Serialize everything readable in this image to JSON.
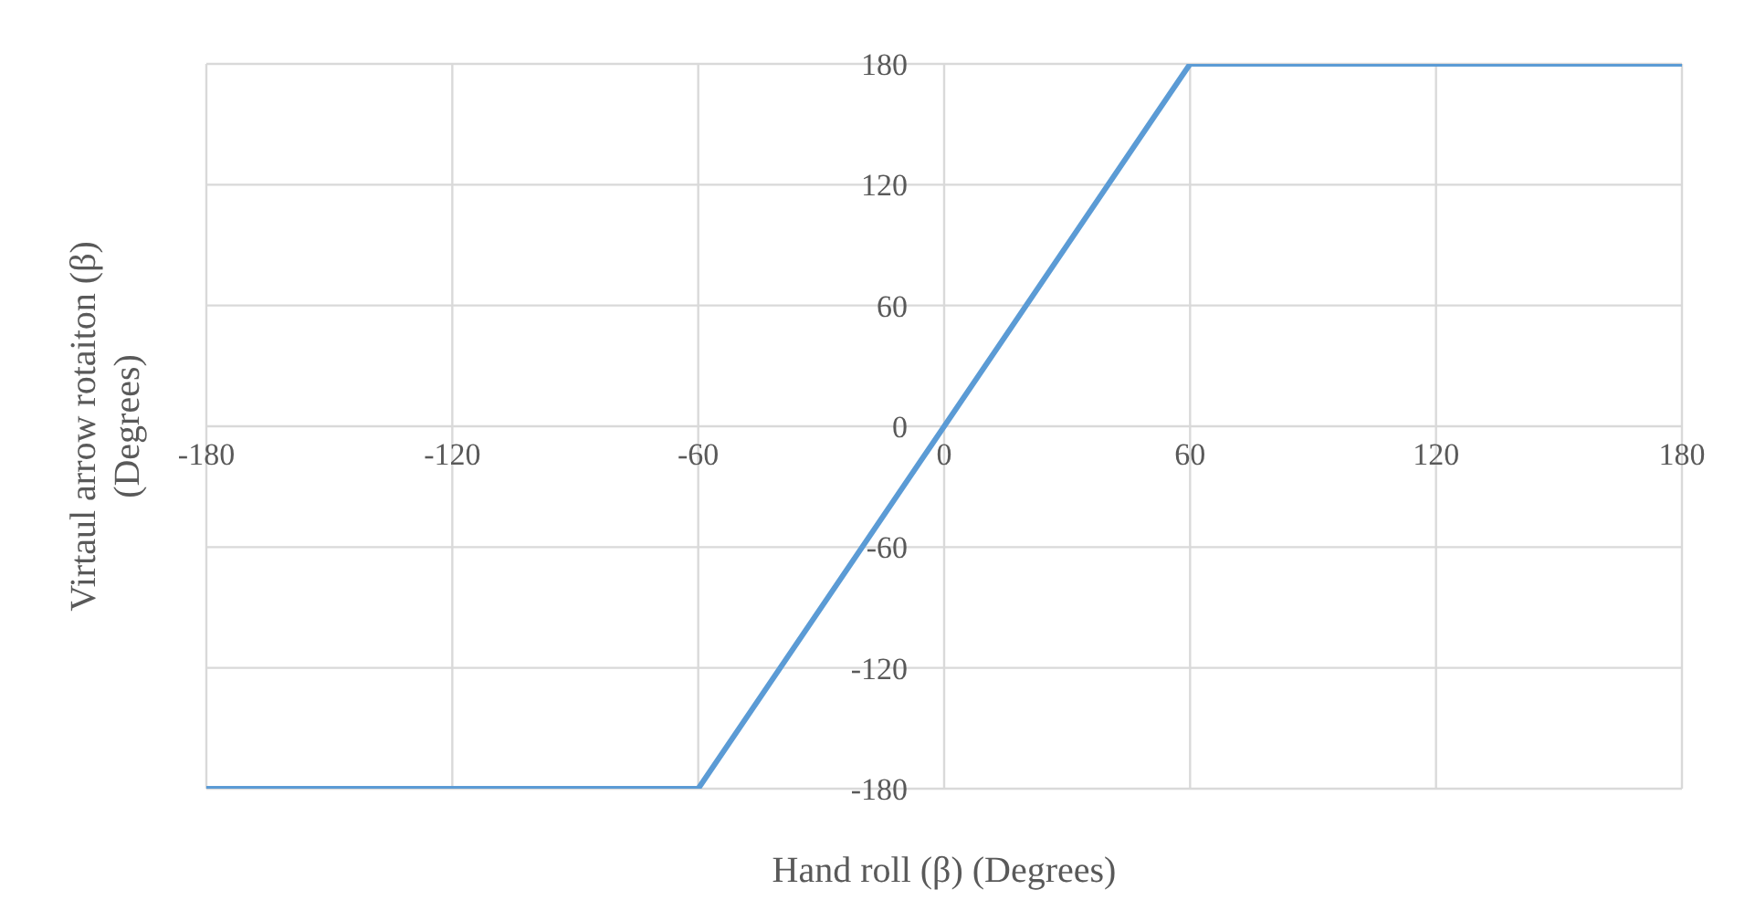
{
  "chart_data": {
    "type": "line",
    "xlabel": "Hand roll (β) (Degrees)",
    "ylabel": "Virtaul arrow rotaiton (β) (Degrees)",
    "x": [
      -180,
      -60,
      60,
      180
    ],
    "series": [
      {
        "color": "#5b9bd5",
        "values": [
          -180,
          -180,
          180,
          180
        ]
      }
    ],
    "xlim": [
      -180,
      180
    ],
    "xticks": [
      -180,
      -120,
      -60,
      0,
      60,
      120,
      180
    ],
    "ylim": [
      -180,
      180
    ],
    "yticks": [
      -180,
      -120,
      -60,
      0,
      60,
      120,
      180
    ],
    "grid": true,
    "legend": false,
    "marker": "none",
    "line_style": "solid"
  }
}
